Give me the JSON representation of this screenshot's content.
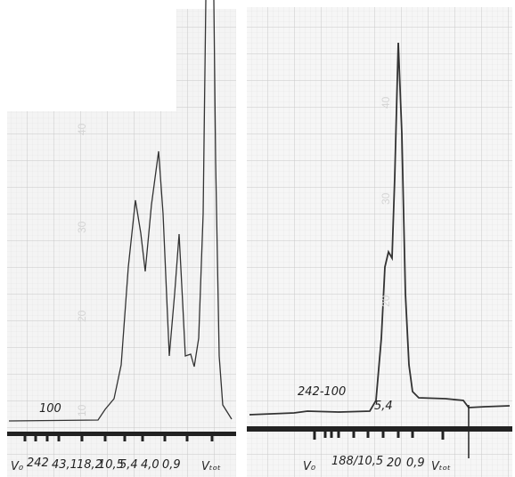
{
  "left": {
    "grid_labels": [
      "40",
      "30",
      "20",
      "10"
    ],
    "annotation": "100",
    "axis_labels": [
      "V₀",
      "242",
      "43,1",
      "18,2",
      "10,5",
      "5,4",
      "4,0",
      "0,9",
      "Vₜₒₜ"
    ]
  },
  "right": {
    "grid_labels": [
      "40",
      "30",
      "20"
    ],
    "annotations": [
      "242-100",
      "5,4"
    ],
    "axis_labels": [
      "V₀",
      "188/10,5",
      "20",
      "0,9",
      "Vₜₒₜ"
    ]
  }
}
